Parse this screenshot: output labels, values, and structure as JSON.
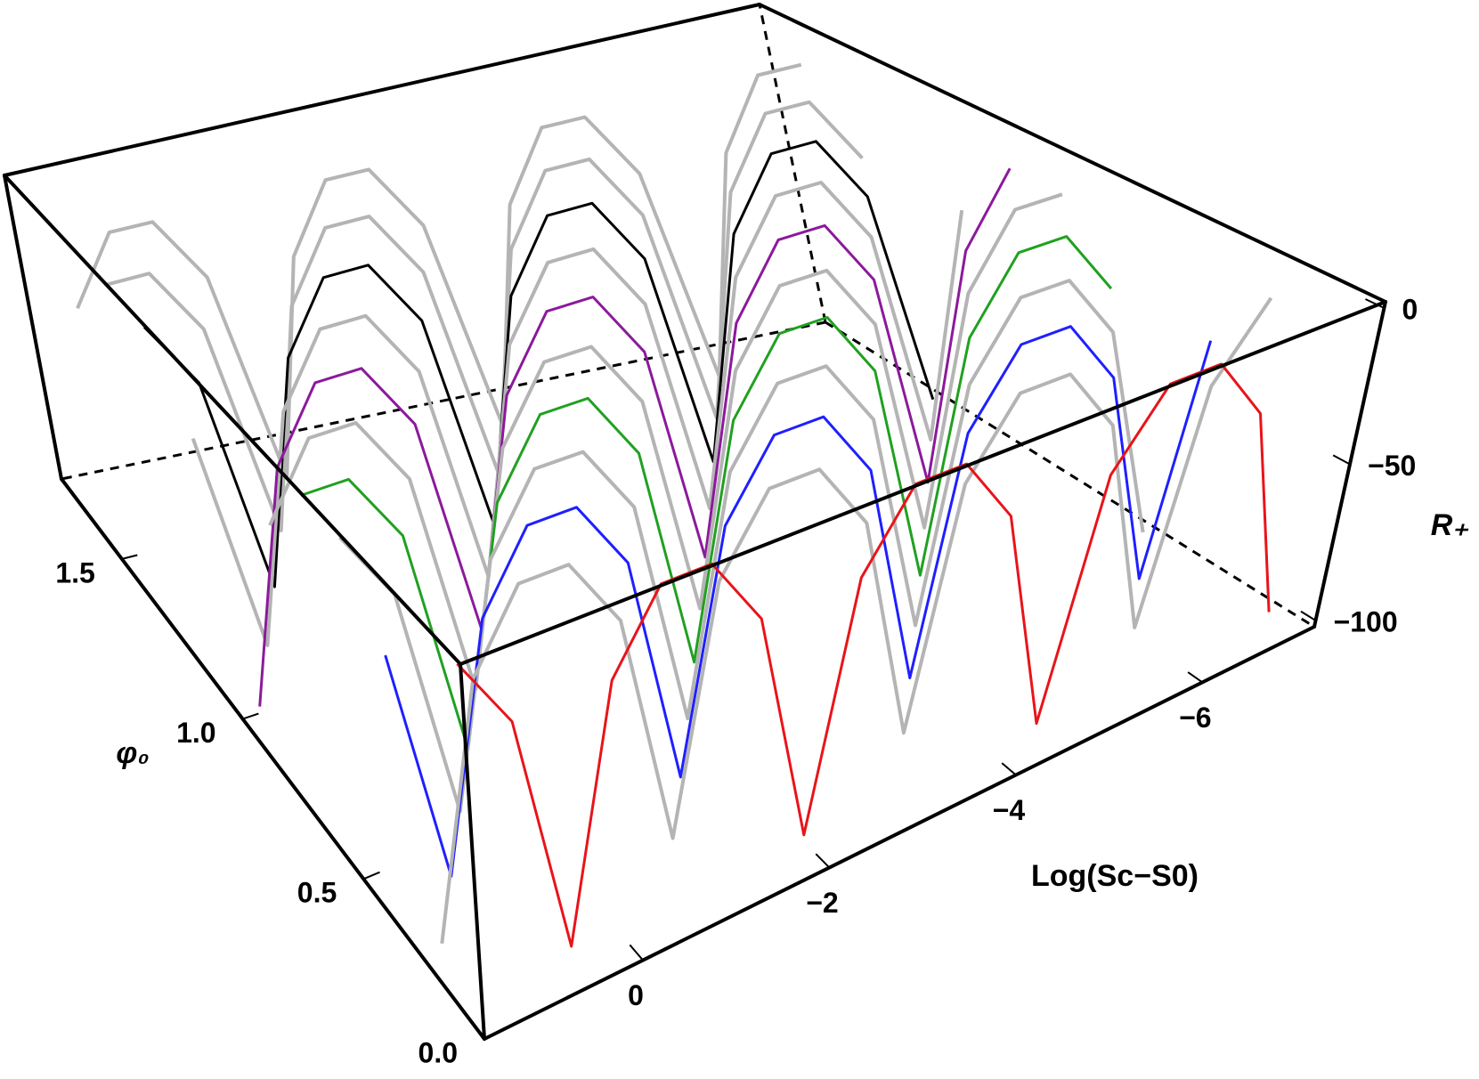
{
  "chart_data": {
    "type": "line3d",
    "xlabel": "Log(Sc−S0)",
    "ylabel": "φ₀",
    "zlabel": "R₊",
    "xlim": [
      1.7,
      -7.2
    ],
    "ylim": [
      0,
      1.75
    ],
    "zlim": [
      -102,
      2
    ],
    "xticks": [
      0,
      {
        "value": -2,
        "label": "−2"
      },
      {
        "value": -4,
        "label": "−4"
      },
      {
        "value": -6,
        "label": "−6"
      }
    ],
    "yticks": [
      {
        "value": 0,
        "label": "0.0"
      },
      0.5,
      {
        "value": 1,
        "label": "1.0"
      },
      1.5
    ],
    "zticks": [
      0,
      {
        "value": -50,
        "label": "−50"
      },
      {
        "value": -100,
        "label": "−100"
      }
    ],
    "x": [
      1.5,
      1,
      0.5,
      0,
      -0.5,
      -1,
      -1.5,
      -2,
      -2.5,
      -3,
      -3.5,
      -4,
      -4.5,
      -5,
      -5.5,
      -6,
      -6.5,
      -7
    ],
    "series": [
      {
        "phi": 1.6,
        "color": "#b4b4b4",
        "values": [
          -30,
          -8,
          -8,
          -30,
          -100,
          -30,
          -8,
          -8,
          -30,
          -100,
          -30,
          -8,
          -8,
          -30,
          -100,
          -30,
          -8,
          -8
        ]
      },
      {
        "phi": 1.45,
        "color": "#b4b4b4",
        "values": [
          -8,
          -8,
          -30,
          -100,
          -30,
          -8,
          -8,
          -30,
          -100,
          -30,
          -8,
          -8,
          -30,
          -100,
          -30,
          -8,
          -8,
          -30
        ]
      },
      {
        "phi": 1.3,
        "color": "#000000",
        "values": [
          -8,
          -30,
          -100,
          -30,
          -8,
          -8,
          -30,
          -100,
          -30,
          -8,
          -8,
          -30,
          -100,
          -30,
          -8,
          -8,
          -30,
          -100
        ]
      },
      {
        "phi": 1.15,
        "color": "#b4b4b4",
        "values": [
          -30,
          -100,
          -30,
          -8,
          -8,
          -30,
          -100,
          -30,
          -8,
          -8,
          -30,
          -100,
          -30,
          -8,
          -8,
          -30,
          -100,
          -30
        ]
      },
      {
        "phi": 1.0,
        "color": "#8b1a9b",
        "values": [
          -100,
          -30,
          -8,
          -8,
          -30,
          -100,
          -30,
          -8,
          -8,
          -30,
          -100,
          -30,
          -8,
          -8,
          -30,
          -100,
          -30,
          -8
        ]
      },
      {
        "phi": 0.85,
        "color": "#b4b4b4",
        "values": [
          -30,
          -8,
          -8,
          -30,
          -100,
          -30,
          -8,
          -8,
          -30,
          -100,
          -30,
          -8,
          -8,
          -30,
          -100,
          -30,
          -8,
          -8
        ]
      },
      {
        "phi": 0.7,
        "color": "#21a021",
        "values": [
          -8,
          -8,
          -30,
          -100,
          -30,
          -8,
          -8,
          -30,
          -100,
          -30,
          -8,
          -8,
          -30,
          -100,
          -30,
          -8,
          -8,
          -30
        ]
      },
      {
        "phi": 0.55,
        "color": "#b4b4b4",
        "values": [
          -8,
          -30,
          -100,
          -30,
          -8,
          -8,
          -30,
          -100,
          -30,
          -8,
          -8,
          -30,
          -100,
          -30,
          -8,
          -8,
          -30,
          -100
        ]
      },
      {
        "phi": 0.4,
        "color": "#1f1fff",
        "values": [
          -30,
          -100,
          -30,
          -8,
          -8,
          -30,
          -100,
          -30,
          -8,
          -8,
          -30,
          -100,
          -30,
          -8,
          -8,
          -30,
          -100,
          -30
        ]
      },
      {
        "phi": 0.25,
        "color": "#b4b4b4",
        "values": [
          -100,
          -30,
          -8,
          -8,
          -30,
          -100,
          -30,
          -8,
          -8,
          -30,
          -100,
          -30,
          -8,
          -8,
          -30,
          -100,
          -30,
          -8
        ]
      },
      {
        "phi": 0.1,
        "color": "#e8141a",
        "values": [
          -8,
          -30,
          -100,
          -30,
          -8,
          -8,
          -30,
          -100,
          -30,
          -8,
          -8,
          -30,
          -100,
          -30,
          -8,
          -8,
          -30,
          -100
        ]
      }
    ]
  }
}
